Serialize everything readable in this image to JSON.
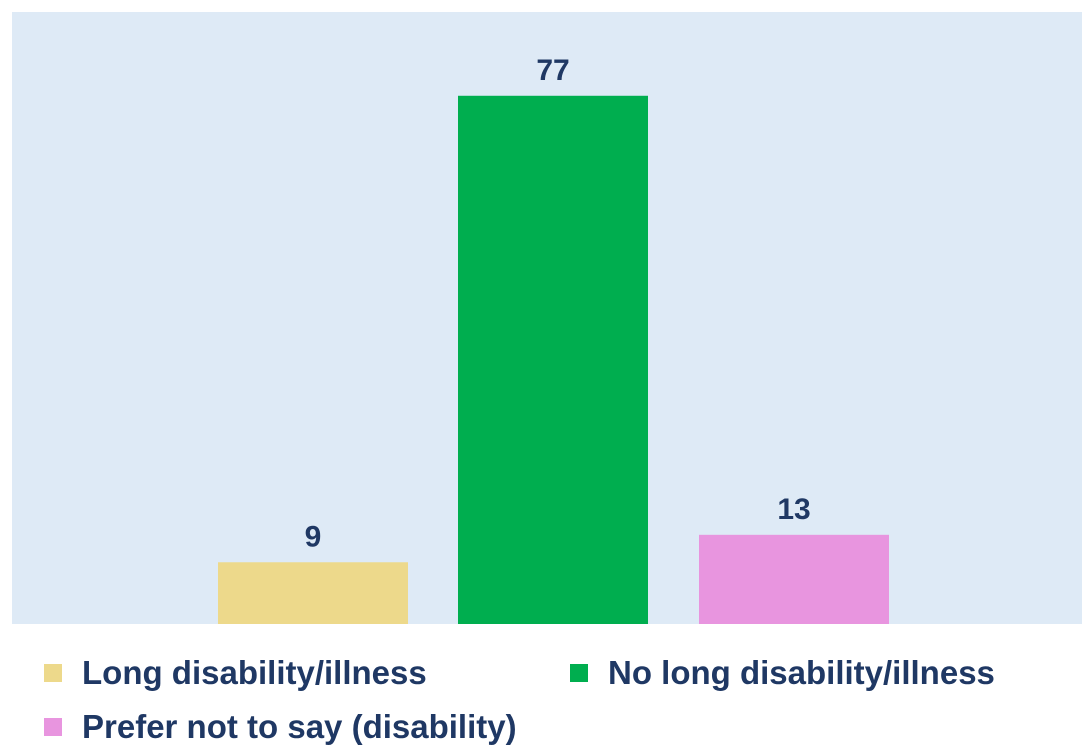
{
  "chart_data": {
    "type": "bar",
    "title": "",
    "xlabel": "",
    "ylabel": "",
    "ylim": [
      0,
      90
    ],
    "grid": false,
    "legend_position": "bottom",
    "categories": [
      "Long disability/illness",
      "No long disability/illness",
      "Prefer not to say (disability)"
    ],
    "values": [
      9,
      77,
      13
    ],
    "value_labels": [
      "9",
      "77",
      "13"
    ],
    "colors": [
      "#EDD98B",
      "#00AE4F",
      "#E895DF"
    ],
    "plot_background": "#DEEAF6",
    "label_color": "#1F3864"
  }
}
